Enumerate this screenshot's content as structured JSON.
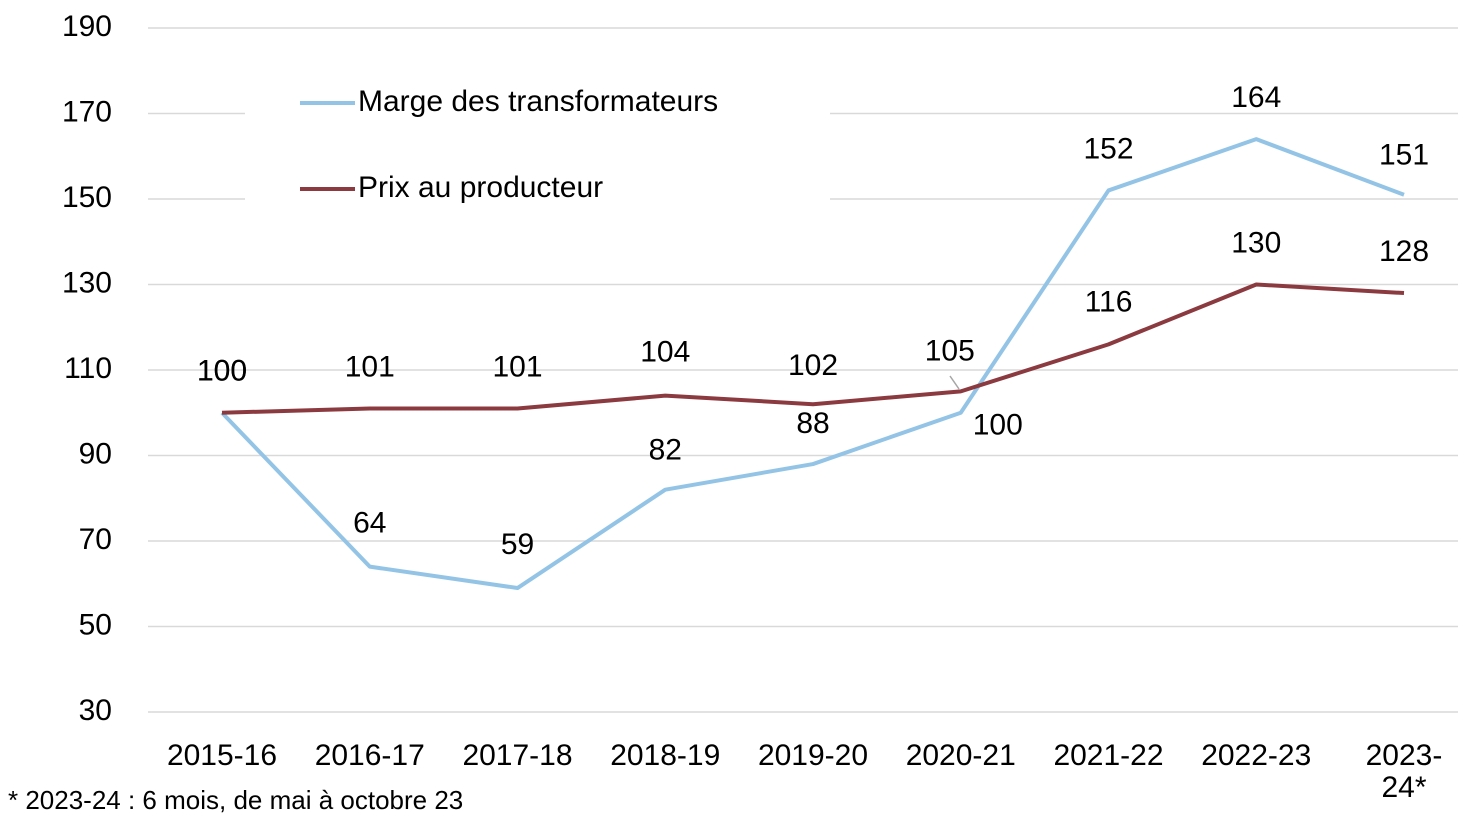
{
  "chart_data": {
    "type": "line",
    "categories": [
      "2015-16",
      "2016-17",
      "2017-18",
      "2018-19",
      "2019-20",
      "2020-21",
      "2021-22",
      "2022-23",
      "2023-24*"
    ],
    "series": [
      {
        "name": "Marge des transformateurs",
        "color": "#93c4e6",
        "values": [
          100,
          64,
          59,
          82,
          88,
          100,
          152,
          164,
          151
        ]
      },
      {
        "name": "Prix au producteur",
        "color": "#8b3a40",
        "values": [
          100,
          101,
          101,
          104,
          102,
          105,
          116,
          130,
          128
        ]
      }
    ],
    "ylim": [
      30,
      190
    ],
    "yticks": [
      30,
      50,
      70,
      90,
      110,
      130,
      150,
      170,
      190
    ],
    "grid": true,
    "note": "* 2023-24 : 6 mois, de mai à octobre 23"
  }
}
